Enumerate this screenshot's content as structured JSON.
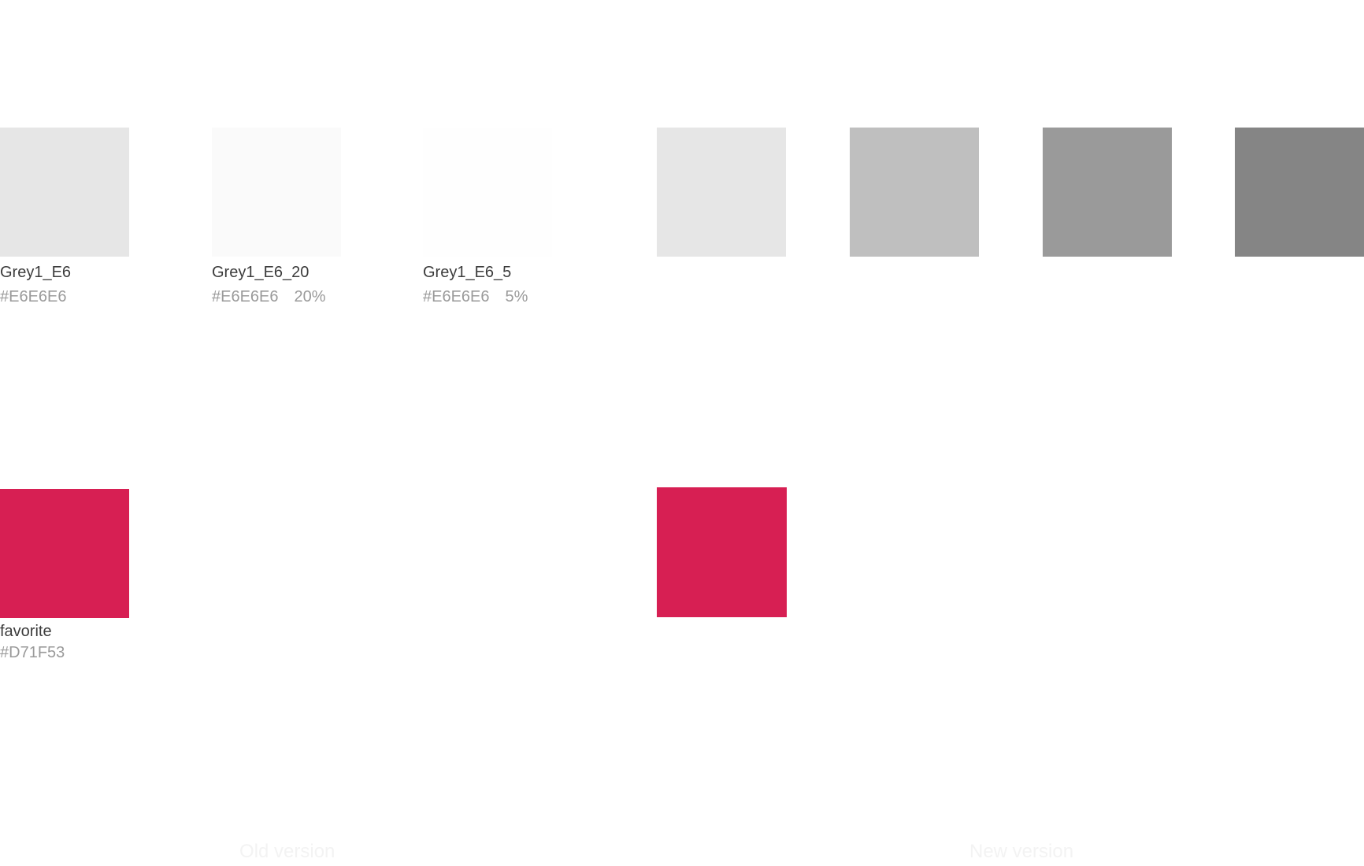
{
  "old_version": {
    "label": "Old version",
    "swatches": [
      {
        "name": "Grey1_E6",
        "hex": "#E6E6E6",
        "opacity": "",
        "fill": "#e6e6e6"
      },
      {
        "name": "Grey1_E6_20",
        "hex": "#E6E6E6",
        "opacity": "20%",
        "fill": "#fafafa"
      },
      {
        "name": "Grey1_E6_5",
        "hex": "#E6E6E6",
        "opacity": "5%",
        "fill": "#fefefe"
      },
      {
        "name": "favorite",
        "hex": "#D71F53",
        "opacity": "",
        "fill": "#d71f53"
      }
    ]
  },
  "new_version": {
    "label": "New version",
    "swatches": [
      {
        "fill": "#e6e6e6"
      },
      {
        "fill": "#bfbfbf"
      },
      {
        "fill": "#9a9a9a"
      },
      {
        "fill": "#858585"
      },
      {
        "fill": "#d71f53"
      }
    ]
  }
}
